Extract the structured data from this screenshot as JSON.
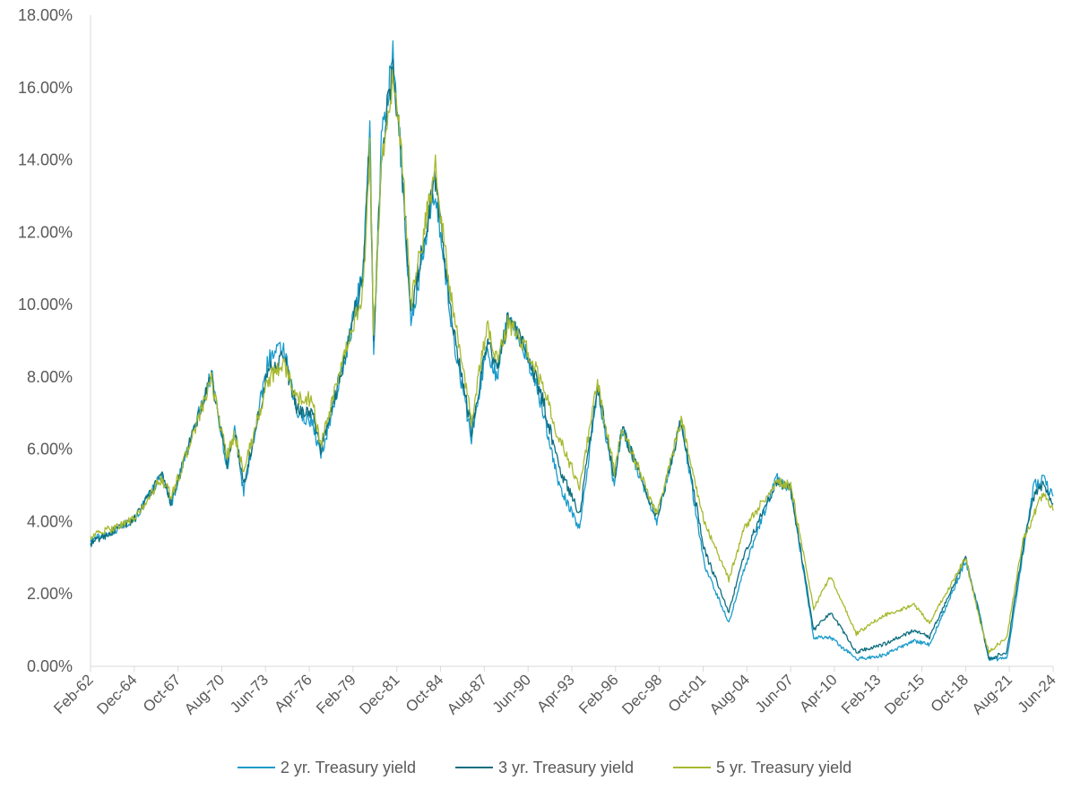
{
  "chart_data": {
    "type": "line",
    "title": "",
    "xlabel": "",
    "ylabel": "",
    "ylim": [
      0,
      0.18
    ],
    "xlim": [
      "1962-02",
      "2024-06"
    ],
    "y_ticks": [
      "0.00%",
      "2.00%",
      "4.00%",
      "6.00%",
      "8.00%",
      "10.00%",
      "12.00%",
      "14.00%",
      "16.00%",
      "18.00%"
    ],
    "x_ticks": [
      "Feb-62",
      "Dec-64",
      "Oct-67",
      "Aug-70",
      "Jun-73",
      "Apr-76",
      "Feb-79",
      "Dec-81",
      "Oct-84",
      "Aug-87",
      "Jun-90",
      "Apr-93",
      "Feb-96",
      "Dec-98",
      "Oct-01",
      "Aug-04",
      "Jun-07",
      "Apr-10",
      "Feb-13",
      "Dec-15",
      "Oct-18",
      "Aug-21",
      "Jun-24"
    ],
    "grid": false,
    "legend_position": "bottom",
    "series": [
      {
        "name": "2 yr. Treasury yield",
        "color": "#1a9bcb",
        "points": [
          [
            "1962-02",
            0.035
          ],
          [
            "1963-06",
            0.037
          ],
          [
            "1965-01",
            0.041
          ],
          [
            "1966-09",
            0.053
          ],
          [
            "1967-05",
            0.045
          ],
          [
            "1968-01",
            0.055
          ],
          [
            "1969-12",
            0.081
          ],
          [
            "1970-12",
            0.055
          ],
          [
            "1971-06",
            0.065
          ],
          [
            "1972-01",
            0.048
          ],
          [
            "1973-08",
            0.085
          ],
          [
            "1974-08",
            0.088
          ],
          [
            "1975-06",
            0.07
          ],
          [
            "1976-06",
            0.068
          ],
          [
            "1977-01",
            0.058
          ],
          [
            "1978-06",
            0.082
          ],
          [
            "1979-10",
            0.11
          ],
          [
            "1980-03",
            0.153
          ],
          [
            "1980-06",
            0.087
          ],
          [
            "1980-12",
            0.145
          ],
          [
            "1981-09",
            0.168
          ],
          [
            "1982-03",
            0.142
          ],
          [
            "1982-11",
            0.095
          ],
          [
            "1984-06",
            0.132
          ],
          [
            "1985-06",
            0.095
          ],
          [
            "1986-10",
            0.063
          ],
          [
            "1987-10",
            0.088
          ],
          [
            "1988-06",
            0.08
          ],
          [
            "1989-03",
            0.098
          ],
          [
            "1990-06",
            0.085
          ],
          [
            "1991-06",
            0.07
          ],
          [
            "1992-06",
            0.05
          ],
          [
            "1993-10",
            0.038
          ],
          [
            "1994-12",
            0.077
          ],
          [
            "1996-01",
            0.05
          ],
          [
            "1996-07",
            0.066
          ],
          [
            "1998-10",
            0.04
          ],
          [
            "2000-05",
            0.068
          ],
          [
            "2001-11",
            0.028
          ],
          [
            "2003-06",
            0.012
          ],
          [
            "2004-06",
            0.027
          ],
          [
            "2006-07",
            0.052
          ],
          [
            "2007-06",
            0.049
          ],
          [
            "2008-12",
            0.008
          ],
          [
            "2010-01",
            0.008
          ],
          [
            "2011-09",
            0.002
          ],
          [
            "2013-06",
            0.003
          ],
          [
            "2015-06",
            0.007
          ],
          [
            "2016-06",
            0.006
          ],
          [
            "2018-10",
            0.029
          ],
          [
            "2019-08",
            0.016
          ],
          [
            "2020-04",
            0.002
          ],
          [
            "2021-06",
            0.002
          ],
          [
            "2022-06",
            0.03
          ],
          [
            "2023-03",
            0.05
          ],
          [
            "2023-10",
            0.052
          ],
          [
            "2024-06",
            0.047
          ]
        ]
      },
      {
        "name": "3 yr. Treasury yield",
        "color": "#0d6e7f",
        "points": [
          [
            "1962-02",
            0.034
          ],
          [
            "1963-06",
            0.037
          ],
          [
            "1965-01",
            0.041
          ],
          [
            "1966-09",
            0.053
          ],
          [
            "1967-05",
            0.045
          ],
          [
            "1968-01",
            0.055
          ],
          [
            "1969-12",
            0.08
          ],
          [
            "1970-12",
            0.056
          ],
          [
            "1971-06",
            0.065
          ],
          [
            "1972-01",
            0.05
          ],
          [
            "1973-08",
            0.082
          ],
          [
            "1974-08",
            0.086
          ],
          [
            "1975-06",
            0.071
          ],
          [
            "1976-06",
            0.07
          ],
          [
            "1977-01",
            0.06
          ],
          [
            "1978-06",
            0.083
          ],
          [
            "1979-10",
            0.108
          ],
          [
            "1980-03",
            0.148
          ],
          [
            "1980-06",
            0.088
          ],
          [
            "1980-12",
            0.142
          ],
          [
            "1981-09",
            0.165
          ],
          [
            "1982-03",
            0.145
          ],
          [
            "1982-11",
            0.098
          ],
          [
            "1984-06",
            0.135
          ],
          [
            "1985-06",
            0.098
          ],
          [
            "1986-10",
            0.065
          ],
          [
            "1987-10",
            0.09
          ],
          [
            "1988-06",
            0.082
          ],
          [
            "1989-03",
            0.097
          ],
          [
            "1990-06",
            0.086
          ],
          [
            "1991-06",
            0.073
          ],
          [
            "1992-06",
            0.055
          ],
          [
            "1993-10",
            0.042
          ],
          [
            "1994-12",
            0.078
          ],
          [
            "1996-01",
            0.052
          ],
          [
            "1996-07",
            0.066
          ],
          [
            "1998-10",
            0.041
          ],
          [
            "2000-05",
            0.068
          ],
          [
            "2001-11",
            0.032
          ],
          [
            "2003-06",
            0.015
          ],
          [
            "2004-06",
            0.031
          ],
          [
            "2006-07",
            0.051
          ],
          [
            "2007-06",
            0.049
          ],
          [
            "2008-12",
            0.01
          ],
          [
            "2010-01",
            0.015
          ],
          [
            "2011-09",
            0.004
          ],
          [
            "2013-06",
            0.006
          ],
          [
            "2015-06",
            0.01
          ],
          [
            "2016-06",
            0.008
          ],
          [
            "2018-10",
            0.03
          ],
          [
            "2019-08",
            0.015
          ],
          [
            "2020-04",
            0.002
          ],
          [
            "2021-06",
            0.004
          ],
          [
            "2022-06",
            0.032
          ],
          [
            "2023-03",
            0.047
          ],
          [
            "2023-10",
            0.05
          ],
          [
            "2024-06",
            0.045
          ]
        ]
      },
      {
        "name": "5 yr. Treasury yield",
        "color": "#a7b92e",
        "points": [
          [
            "1962-02",
            0.036
          ],
          [
            "1963-06",
            0.038
          ],
          [
            "1965-01",
            0.041
          ],
          [
            "1966-09",
            0.052
          ],
          [
            "1967-05",
            0.047
          ],
          [
            "1968-01",
            0.055
          ],
          [
            "1969-12",
            0.079
          ],
          [
            "1970-12",
            0.058
          ],
          [
            "1971-06",
            0.064
          ],
          [
            "1972-01",
            0.054
          ],
          [
            "1973-08",
            0.079
          ],
          [
            "1974-08",
            0.084
          ],
          [
            "1975-06",
            0.074
          ],
          [
            "1976-06",
            0.074
          ],
          [
            "1977-01",
            0.061
          ],
          [
            "1978-06",
            0.084
          ],
          [
            "1979-10",
            0.104
          ],
          [
            "1980-03",
            0.142
          ],
          [
            "1980-06",
            0.092
          ],
          [
            "1980-12",
            0.139
          ],
          [
            "1981-09",
            0.162
          ],
          [
            "1982-03",
            0.146
          ],
          [
            "1982-11",
            0.1
          ],
          [
            "1984-06",
            0.138
          ],
          [
            "1985-06",
            0.102
          ],
          [
            "1986-10",
            0.068
          ],
          [
            "1987-10",
            0.094
          ],
          [
            "1988-06",
            0.085
          ],
          [
            "1989-03",
            0.095
          ],
          [
            "1990-06",
            0.087
          ],
          [
            "1991-06",
            0.077
          ],
          [
            "1992-06",
            0.063
          ],
          [
            "1993-10",
            0.05
          ],
          [
            "1994-12",
            0.078
          ],
          [
            "1996-01",
            0.054
          ],
          [
            "1996-07",
            0.066
          ],
          [
            "1998-10",
            0.042
          ],
          [
            "2000-05",
            0.068
          ],
          [
            "2001-11",
            0.04
          ],
          [
            "2003-06",
            0.024
          ],
          [
            "2004-06",
            0.038
          ],
          [
            "2006-07",
            0.051
          ],
          [
            "2007-06",
            0.05
          ],
          [
            "2008-12",
            0.016
          ],
          [
            "2010-01",
            0.025
          ],
          [
            "2011-09",
            0.009
          ],
          [
            "2013-06",
            0.014
          ],
          [
            "2015-06",
            0.017
          ],
          [
            "2016-06",
            0.012
          ],
          [
            "2018-10",
            0.03
          ],
          [
            "2019-08",
            0.014
          ],
          [
            "2020-04",
            0.004
          ],
          [
            "2021-06",
            0.008
          ],
          [
            "2022-06",
            0.034
          ],
          [
            "2023-03",
            0.042
          ],
          [
            "2023-10",
            0.048
          ],
          [
            "2024-06",
            0.043
          ]
        ]
      }
    ]
  }
}
